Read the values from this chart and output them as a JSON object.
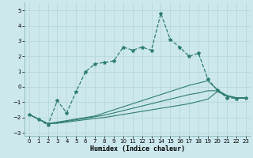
{
  "xlabel": "Humidex (Indice chaleur)",
  "background_color": "#cce8ec",
  "grid_color": "#b8d8dc",
  "line_color": "#2e7d72",
  "x_values": [
    0,
    1,
    2,
    3,
    4,
    5,
    6,
    7,
    8,
    9,
    10,
    11,
    12,
    13,
    14,
    15,
    16,
    17,
    18,
    19,
    20,
    21,
    22,
    23
  ],
  "main_line": [
    -1.8,
    -2.1,
    -2.5,
    -0.9,
    -1.7,
    -0.3,
    1.0,
    1.5,
    1.6,
    1.7,
    2.6,
    2.4,
    2.6,
    2.4,
    4.8,
    3.1,
    2.6,
    2.0,
    2.2,
    0.5,
    -0.2,
    -0.7,
    -0.75,
    -0.7
  ],
  "lower_line1": [
    -1.8,
    -2.1,
    -2.4,
    -2.3,
    -2.2,
    -2.1,
    -2.0,
    -1.9,
    -1.7,
    -1.5,
    -1.3,
    -1.1,
    -0.9,
    -0.7,
    -0.5,
    -0.3,
    -0.1,
    0.1,
    0.25,
    0.4,
    -0.2,
    -0.55,
    -0.7,
    -0.7
  ],
  "lower_line2": [
    -1.8,
    -2.1,
    -2.4,
    -2.35,
    -2.25,
    -2.15,
    -2.05,
    -1.95,
    -1.85,
    -1.7,
    -1.55,
    -1.4,
    -1.25,
    -1.1,
    -0.95,
    -0.8,
    -0.65,
    -0.5,
    -0.4,
    -0.25,
    -0.25,
    -0.6,
    -0.72,
    -0.72
  ],
  "lower_line3": [
    -1.8,
    -2.1,
    -2.4,
    -2.38,
    -2.3,
    -2.22,
    -2.14,
    -2.06,
    -2.0,
    -1.9,
    -1.8,
    -1.7,
    -1.6,
    -1.5,
    -1.4,
    -1.3,
    -1.2,
    -1.1,
    -0.95,
    -0.8,
    -0.3,
    -0.6,
    -0.74,
    -0.74
  ],
  "ylim": [
    -3.2,
    5.5
  ],
  "xlim": [
    -0.5,
    23.5
  ],
  "yticks": [
    -3,
    -2,
    -1,
    0,
    1,
    2,
    3,
    4,
    5
  ],
  "xticks": [
    0,
    1,
    2,
    3,
    4,
    5,
    6,
    7,
    8,
    9,
    10,
    11,
    12,
    13,
    14,
    15,
    16,
    17,
    18,
    19,
    20,
    21,
    22,
    23
  ],
  "xlabel_fontsize": 6.0,
  "tick_fontsize": 5.0,
  "linewidth_main": 0.9,
  "linewidth_lower": 0.8,
  "marker_size": 3.0
}
